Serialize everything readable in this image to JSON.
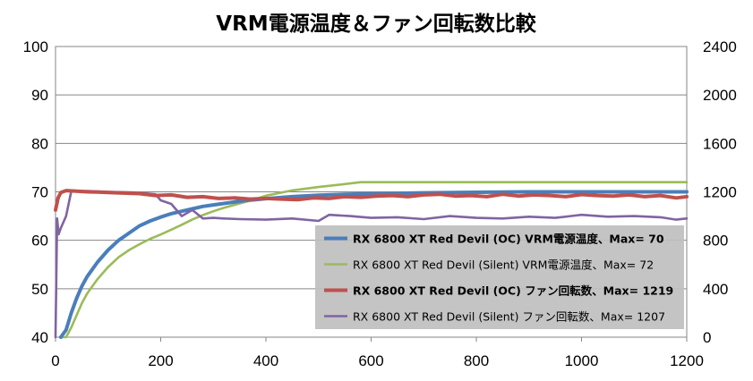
{
  "chart_data": {
    "type": "line",
    "title": "VRM電源温度＆ファン回転数比較",
    "xlabel": "",
    "ylabel": "",
    "y2label": "",
    "xlim": [
      0,
      1200
    ],
    "ylim": [
      40,
      100
    ],
    "y2lim": [
      0,
      2400
    ],
    "x_ticks": [
      "0",
      "200",
      "400",
      "600",
      "800",
      "1000",
      "1200"
    ],
    "y_ticks": [
      "40",
      "50",
      "60",
      "70",
      "80",
      "90",
      "100"
    ],
    "y2_ticks": [
      "0",
      "400",
      "800",
      "1200",
      "1600",
      "2000",
      "2400"
    ],
    "grid": "horizontal",
    "legend_position": "bottom-right",
    "series": [
      {
        "name": "RX 6800 XT Red Devil (OC) VRM電源温度、Max= 70",
        "axis": "left",
        "color": "#4a7ebb",
        "bold": true,
        "x": [
          10,
          20,
          30,
          40,
          50,
          60,
          70,
          80,
          100,
          120,
          140,
          160,
          180,
          200,
          220,
          240,
          260,
          280,
          300,
          320,
          340,
          360,
          380,
          400,
          450,
          500,
          550,
          600,
          650,
          700,
          800,
          900,
          1000,
          1100,
          1200
        ],
        "y": [
          40,
          41.5,
          45,
          48,
          50.5,
          52.5,
          54,
          55.5,
          58,
          60,
          61.5,
          63,
          64,
          64.8,
          65.5,
          66,
          66.5,
          67,
          67.3,
          67.6,
          67.9,
          68.2,
          68.4,
          68.6,
          69,
          69.3,
          69.5,
          69.6,
          69.7,
          69.8,
          69.9,
          70,
          70,
          70,
          70
        ]
      },
      {
        "name": "RX 6800 XT Red Devil (Silent) VRM電源温度、Max= 72",
        "axis": "left",
        "color": "#9bbb59",
        "bold": false,
        "x": [
          10,
          20,
          30,
          40,
          50,
          60,
          70,
          80,
          100,
          120,
          140,
          160,
          180,
          200,
          220,
          240,
          260,
          280,
          300,
          320,
          340,
          360,
          380,
          400,
          450,
          500,
          550,
          580,
          600,
          700,
          800,
          900,
          1000,
          1100,
          1200
        ],
        "y": [
          40,
          40,
          42,
          44.5,
          47,
          49,
          50.5,
          52,
          54.5,
          56.5,
          58,
          59.2,
          60.3,
          61.2,
          62.2,
          63.2,
          64.3,
          65.2,
          66,
          66.7,
          67.3,
          67.9,
          68.5,
          69.2,
          70.3,
          71,
          71.6,
          72,
          72,
          72,
          72,
          72,
          72,
          72,
          72
        ]
      },
      {
        "name": "RX 6800 XT Red Devil (OC) ファン回転数、Max= 1219",
        "axis": "right",
        "color": "#c0504d",
        "bold": true,
        "x": [
          0,
          5,
          10,
          20,
          40,
          60,
          80,
          100,
          130,
          160,
          190,
          220,
          250,
          280,
          310,
          340,
          370,
          400,
          430,
          460,
          490,
          520,
          550,
          580,
          610,
          640,
          670,
          700,
          730,
          760,
          790,
          820,
          850,
          880,
          910,
          940,
          970,
          1000,
          1030,
          1060,
          1090,
          1120,
          1150,
          1180,
          1200
        ],
        "y": [
          1050,
          1150,
          1195,
          1210,
          1205,
          1200,
          1198,
          1195,
          1190,
          1185,
          1170,
          1175,
          1155,
          1160,
          1145,
          1150,
          1140,
          1145,
          1140,
          1135,
          1150,
          1145,
          1160,
          1155,
          1165,
          1170,
          1160,
          1175,
          1180,
          1165,
          1170,
          1160,
          1180,
          1165,
          1175,
          1170,
          1160,
          1178,
          1170,
          1165,
          1175,
          1160,
          1170,
          1150,
          1160
        ]
      },
      {
        "name": "RX 6800 XT Red Devil (Silent) ファン回転数、Max= 1207",
        "axis": "right",
        "color": "#8064a2",
        "bold": false,
        "x": [
          0,
          3,
          6,
          10,
          20,
          30,
          60,
          100,
          150,
          190,
          200,
          220,
          240,
          260,
          280,
          300,
          320,
          350,
          400,
          450,
          500,
          520,
          560,
          600,
          650,
          700,
          750,
          800,
          850,
          900,
          950,
          1000,
          1050,
          1100,
          1150,
          1180,
          1200
        ],
        "y": [
          0,
          980,
          850,
          900,
          1000,
          1205,
          1207,
          1200,
          1195,
          1180,
          1130,
          1100,
          1000,
          1050,
          980,
          985,
          980,
          975,
          970,
          980,
          960,
          1010,
          1000,
          985,
          990,
          975,
          1000,
          985,
          980,
          995,
          985,
          1010,
          995,
          1000,
          990,
          970,
          980
        ]
      }
    ]
  }
}
